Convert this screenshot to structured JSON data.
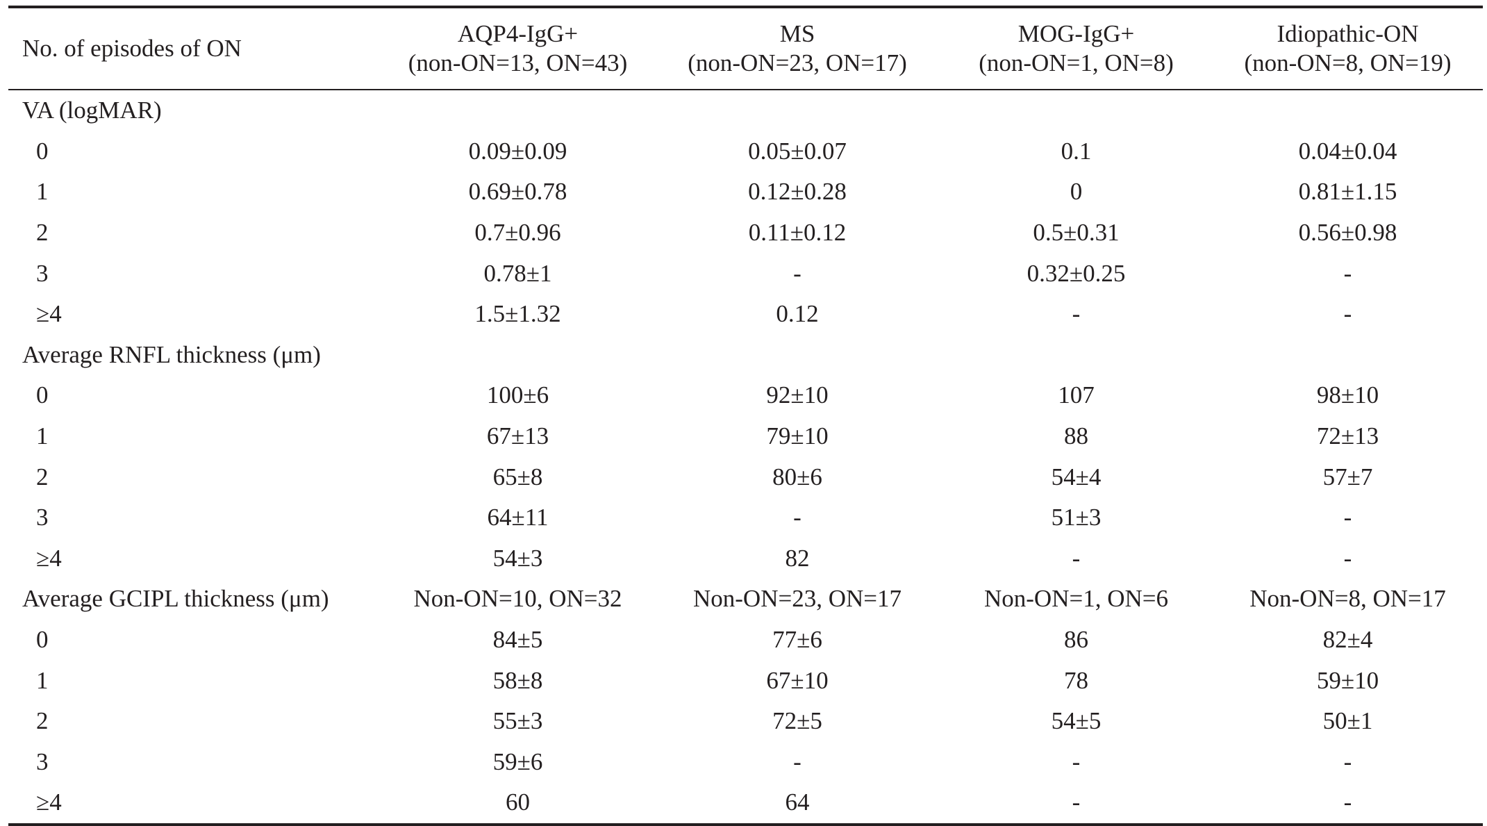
{
  "table": {
    "header": {
      "first": "No. of episodes of ON",
      "groups": [
        {
          "name": "AQP4-IgG+",
          "n": "(non-ON=13, ON=43)"
        },
        {
          "name": "MS",
          "n": "(non-ON=23, ON=17)"
        },
        {
          "name": "MOG-IgG+",
          "n": "(non-ON=1, ON=8)"
        },
        {
          "name": "Idiopathic-ON",
          "n": "(non-ON=8, ON=19)"
        }
      ]
    },
    "sections": [
      {
        "title": "VA (logMAR)",
        "title_values": [
          "",
          "",
          "",
          ""
        ],
        "rows": [
          {
            "label": "0",
            "values": [
              "0.09±0.09",
              "0.05±0.07",
              "0.1",
              "0.04±0.04"
            ]
          },
          {
            "label": "1",
            "values": [
              "0.69±0.78",
              "0.12±0.28",
              "0",
              "0.81±1.15"
            ]
          },
          {
            "label": "2",
            "values": [
              "0.7±0.96",
              "0.11±0.12",
              "0.5±0.31",
              "0.56±0.98"
            ]
          },
          {
            "label": "3",
            "values": [
              "0.78±1",
              "-",
              "0.32±0.25",
              "-"
            ]
          },
          {
            "label": "≥4",
            "values": [
              "1.5±1.32",
              "0.12",
              "-",
              "-"
            ]
          }
        ]
      },
      {
        "title": "Average RNFL thickness (μm)",
        "title_values": [
          "",
          "",
          "",
          ""
        ],
        "rows": [
          {
            "label": "0",
            "values": [
              "100±6",
              "92±10",
              "107",
              "98±10"
            ]
          },
          {
            "label": "1",
            "values": [
              "67±13",
              "79±10",
              "88",
              "72±13"
            ]
          },
          {
            "label": "2",
            "values": [
              "65±8",
              "80±6",
              "54±4",
              "57±7"
            ]
          },
          {
            "label": "3",
            "values": [
              "64±11",
              "-",
              "51±3",
              "-"
            ]
          },
          {
            "label": "≥4",
            "values": [
              "54±3",
              "82",
              "-",
              "-"
            ]
          }
        ]
      },
      {
        "title": "Average GCIPL thickness (μm)",
        "title_values": [
          "Non-ON=10, ON=32",
          "Non-ON=23, ON=17",
          "Non-ON=1, ON=6",
          "Non-ON=8, ON=17"
        ],
        "rows": [
          {
            "label": "0",
            "values": [
              "84±5",
              "77±6",
              "86",
              "82±4"
            ]
          },
          {
            "label": "1",
            "values": [
              "58±8",
              "67±10",
              "78",
              "59±10"
            ]
          },
          {
            "label": "2",
            "values": [
              "55±3",
              "72±5",
              "54±5",
              "50±1"
            ]
          },
          {
            "label": "3",
            "values": [
              "59±6",
              "-",
              "-",
              "-"
            ]
          },
          {
            "label": "≥4",
            "values": [
              "60",
              "64",
              "-",
              "-"
            ]
          }
        ]
      }
    ]
  }
}
